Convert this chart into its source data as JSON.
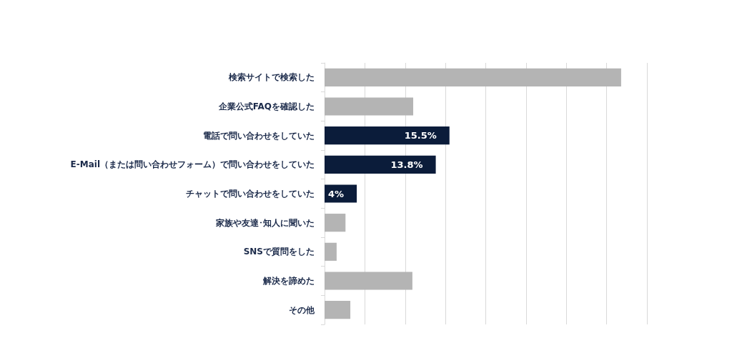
{
  "chart_data": {
    "type": "bar",
    "orientation": "horizontal",
    "categories": [
      "検索サイトで検索した",
      "企業公式FAQを確認した",
      "電話で問い合わせをしていた",
      "E-Mail（または問い合わせフォーム）で問い合わせをしていた",
      "チャットで問い合わせをしていた",
      "家族や友達･知人に聞いた",
      "SNSで質問をした",
      "解決を諦めた",
      "その他"
    ],
    "values": [
      36.8,
      11.0,
      15.5,
      13.8,
      4,
      2.6,
      1.5,
      10.9,
      3.2
    ],
    "colors": [
      "#b4b4b4",
      "#b4b4b4",
      "#0b1c3a",
      "#0b1c3a",
      "#0b1c3a",
      "#b4b4b4",
      "#b4b4b4",
      "#b4b4b4",
      "#b4b4b4"
    ],
    "value_labels": [
      null,
      null,
      "15.5%",
      "13.8%",
      "4%",
      null,
      null,
      null,
      null
    ],
    "xlim": [
      0,
      40
    ],
    "xticks": [
      {
        "value": 0,
        "label": null
      },
      {
        "value": 5,
        "label": null
      },
      {
        "value": 10,
        "label": null
      },
      {
        "value": 15,
        "label": null
      },
      {
        "value": 20,
        "label": null
      },
      {
        "value": 25,
        "label": null
      },
      {
        "value": 30,
        "label": null
      },
      {
        "value": 35,
        "label": null
      },
      {
        "value": 40,
        "label": null
      }
    ],
    "grid": "x",
    "tick_labels": "y"
  }
}
